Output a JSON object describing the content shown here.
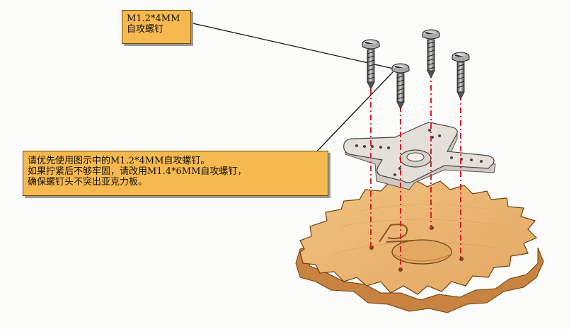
{
  "callouts": {
    "screw_label": {
      "lines": [
        "M1.2*4MM",
        "自攻螺钉"
      ]
    },
    "instruction_note": {
      "lines": [
        "请优先使用图示中的M1.2*4MM自攻螺钉。",
        "如果拧紧后不够牢固，请改用M1.4*6MM自攻螺钉，",
        "确保螺钉头不突出亚克力板。"
      ]
    }
  },
  "colors": {
    "callout_fill": "#f6b94f",
    "guide_line": "#d8202a",
    "gear_wood": "#eab676",
    "horn_plastic": "#e2ddd6"
  },
  "parts": {
    "screw_count": 4,
    "gear_icon": "wooden-gear",
    "horn_icon": "servo-horn-cross"
  }
}
